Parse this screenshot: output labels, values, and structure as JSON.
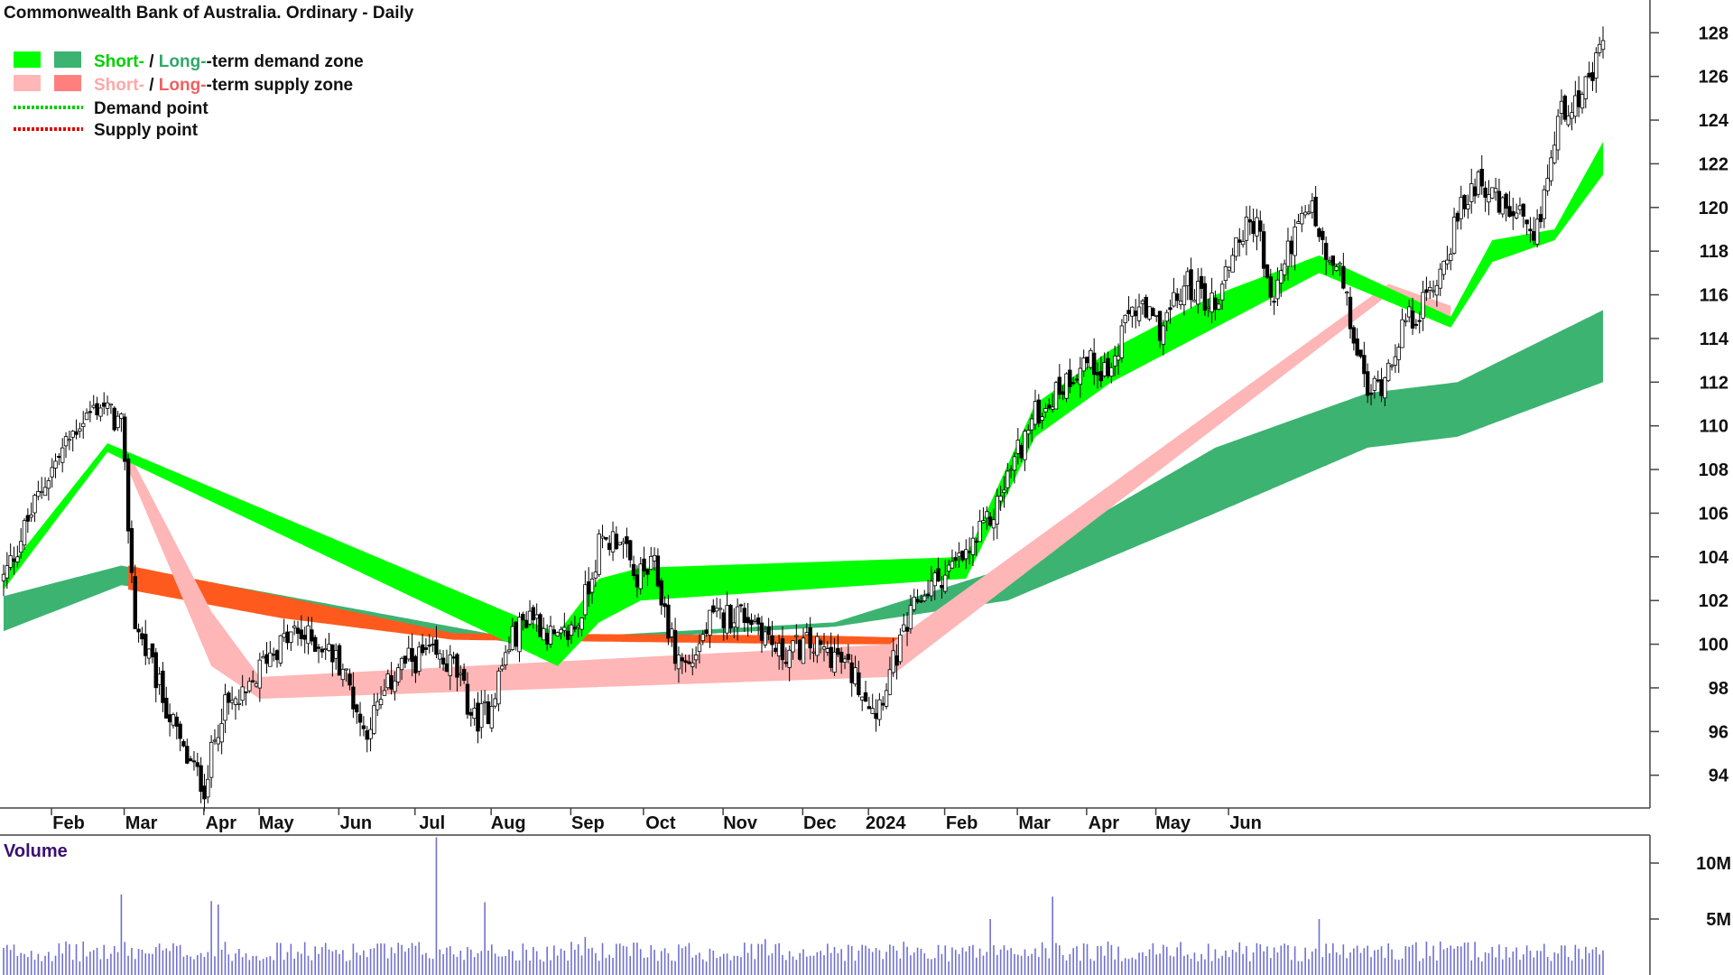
{
  "title": "Commonwealth Bank of Australia. Ordinary - Daily",
  "legend": {
    "short_word": "Short-",
    "slash": " / ",
    "long_word": "Long-",
    "demand_suffix": "-term demand zone",
    "supply_suffix": "-term supply zone",
    "demand_point": "Demand point",
    "supply_point": "Supply point"
  },
  "colors": {
    "short_demand": "#00ff00",
    "long_demand": "#3cb371",
    "short_supply": "#ffb6b6",
    "long_supply": "#ff7f7f",
    "supply_overlap": "#ff5a1e",
    "demand_point": "#00cc00",
    "supply_point": "#e00000",
    "volume_bar": "#7070d0",
    "candle": "#000000"
  },
  "chart_data": {
    "type": "candlestick",
    "interval": "Daily",
    "x_labels": [
      "Feb",
      "Mar",
      "Apr",
      "May",
      "Jun",
      "Jul",
      "Aug",
      "Sep",
      "Oct",
      "Nov",
      "Dec",
      "2024",
      "Feb",
      "Mar",
      "Apr",
      "May",
      "Jun"
    ],
    "y_ticks": [
      94,
      96,
      98,
      100,
      102,
      104,
      106,
      108,
      110,
      112,
      114,
      116,
      118,
      120,
      122,
      124,
      126,
      128
    ],
    "ylim": [
      92.5,
      129.5
    ],
    "price_path": [
      [
        0,
        103.0
      ],
      [
        12,
        107.5
      ],
      [
        22,
        110.2
      ],
      [
        28,
        111.0
      ],
      [
        34,
        110.0
      ],
      [
        38,
        101.0
      ],
      [
        45,
        98.0
      ],
      [
        52,
        95.0
      ],
      [
        58,
        93.5
      ],
      [
        63,
        97.0
      ],
      [
        70,
        97.5
      ],
      [
        76,
        99.5
      ],
      [
        84,
        100.5
      ],
      [
        92,
        100.0
      ],
      [
        98,
        99.0
      ],
      [
        104,
        96.0
      ],
      [
        108,
        97.0
      ],
      [
        114,
        99.0
      ],
      [
        122,
        99.5
      ],
      [
        130,
        99.0
      ],
      [
        136,
        96.5
      ],
      [
        140,
        97.0
      ],
      [
        146,
        100.0
      ],
      [
        152,
        101.5
      ],
      [
        160,
        100.0
      ],
      [
        166,
        101.0
      ],
      [
        172,
        104.5
      ],
      [
        178,
        105.0
      ],
      [
        182,
        103.0
      ],
      [
        188,
        103.5
      ],
      [
        194,
        99.5
      ],
      [
        198,
        99.0
      ],
      [
        204,
        101.0
      ],
      [
        212,
        101.5
      ],
      [
        218,
        101.0
      ],
      [
        224,
        99.5
      ],
      [
        232,
        100.0
      ],
      [
        240,
        99.5
      ],
      [
        246,
        98.5
      ],
      [
        252,
        97.0
      ],
      [
        258,
        99.5
      ],
      [
        264,
        102.0
      ],
      [
        270,
        103.0
      ],
      [
        278,
        104.0
      ],
      [
        286,
        106.0
      ],
      [
        292,
        108.5
      ],
      [
        298,
        110.5
      ],
      [
        304,
        111.5
      ],
      [
        312,
        113.0
      ],
      [
        320,
        112.5
      ],
      [
        326,
        115.5
      ],
      [
        334,
        114.5
      ],
      [
        342,
        116.5
      ],
      [
        350,
        115.5
      ],
      [
        356,
        118.5
      ],
      [
        362,
        119.5
      ],
      [
        366,
        115.5
      ],
      [
        372,
        118.5
      ],
      [
        378,
        120.0
      ],
      [
        382,
        117.5
      ],
      [
        386,
        117.0
      ],
      [
        390,
        114.0
      ],
      [
        394,
        111.5
      ],
      [
        398,
        112.0
      ],
      [
        404,
        114.5
      ],
      [
        410,
        115.5
      ],
      [
        416,
        117.5
      ],
      [
        420,
        119.5
      ],
      [
        426,
        121.5
      ],
      [
        432,
        120.0
      ],
      [
        438,
        119.5
      ],
      [
        442,
        118.0
      ],
      [
        446,
        121.5
      ],
      [
        450,
        124.5
      ],
      [
        454,
        125.0
      ],
      [
        458,
        125.5
      ],
      [
        462,
        127.5
      ]
    ],
    "short_term_demand_zone": [
      [
        0,
        102.5,
        103.2
      ],
      [
        30,
        108.8,
        109.2
      ],
      [
        160,
        99.0,
        100.5
      ],
      [
        172,
        101.0,
        103.0
      ],
      [
        184,
        102.0,
        103.5
      ],
      [
        278,
        103.0,
        104.0
      ],
      [
        298,
        109.5,
        111.0
      ],
      [
        320,
        112.0,
        113.5
      ],
      [
        350,
        114.5,
        116.0
      ],
      [
        380,
        117.0,
        117.8
      ],
      [
        418,
        114.5,
        115.0
      ],
      [
        430,
        117.5,
        118.5
      ],
      [
        448,
        118.5,
        119.0
      ],
      [
        462,
        121.5,
        123.0
      ]
    ],
    "long_term_demand_zone": [
      [
        0,
        100.6,
        102.2
      ],
      [
        34,
        102.7,
        103.6
      ],
      [
        150,
        100.0,
        100.2
      ],
      [
        240,
        100.8,
        101.0
      ],
      [
        290,
        102.0,
        103.5
      ],
      [
        350,
        106.0,
        109.0
      ],
      [
        394,
        109.0,
        111.5
      ],
      [
        420,
        109.5,
        112.0
      ],
      [
        462,
        112.0,
        115.3
      ]
    ],
    "short_term_supply_zone": [
      [
        36,
        108.0,
        108.8
      ],
      [
        60,
        99.0,
        101.5
      ],
      [
        74,
        97.5,
        98.5
      ],
      [
        256,
        98.5,
        100.0
      ],
      [
        400,
        116.0,
        116.5
      ],
      [
        418,
        114.5,
        115.5
      ]
    ],
    "long_term_supply_zone": [
      [
        36,
        102.5,
        103.6
      ],
      [
        80,
        101.2,
        102.2
      ],
      [
        130,
        100.2,
        100.5
      ],
      [
        236,
        100.0,
        100.4
      ],
      [
        260,
        100.0,
        100.3
      ]
    ],
    "volume_ticks": [
      "5M",
      "10M"
    ],
    "volume_unit_millions": [
      5,
      10
    ],
    "volume_ylim_millions": [
      0,
      12.5
    ],
    "volume_spikes_millions": [
      [
        34,
        7.2
      ],
      [
        60,
        6.6
      ],
      [
        62,
        6.3
      ],
      [
        125,
        12.3
      ],
      [
        139,
        6.5
      ],
      [
        168,
        3.4
      ],
      [
        220,
        3.2
      ],
      [
        285,
        5.0
      ],
      [
        303,
        7.0
      ],
      [
        380,
        5.0
      ]
    ]
  },
  "volume_label": "Volume"
}
